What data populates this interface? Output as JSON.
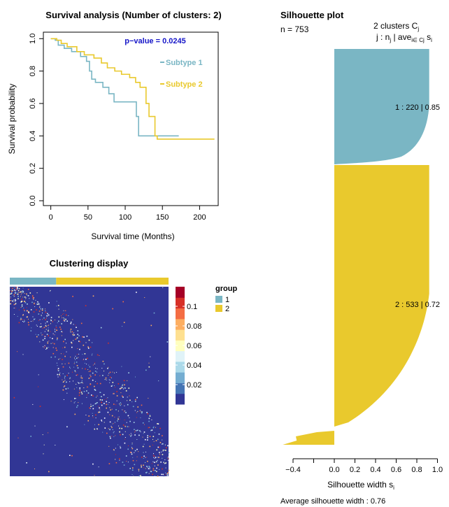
{
  "colors": {
    "subtype1": "#7ab6c4",
    "subtype2": "#e9c92d",
    "pvalue": "#1515c8",
    "heatmap_bg": "#313695",
    "axis": "#000000"
  },
  "chart_data": [
    {
      "type": "line",
      "title": "Survival analysis (Number of clusters: 2)",
      "xlabel": "Survival time (Months)",
      "ylabel": "Survival probability",
      "xlim": [
        -10,
        225
      ],
      "ylim": [
        -0.03,
        1.04
      ],
      "xticks": [
        0,
        50,
        100,
        150,
        200
      ],
      "yticks": [
        0.0,
        0.2,
        0.4,
        0.6,
        0.8,
        1.0
      ],
      "pvalue_label": "p−value = 0.0245",
      "legend_position": "right-middle",
      "series": [
        {
          "name": "Subtype 1",
          "color_key": "subtype1",
          "steps": [
            [
              0,
              1.0
            ],
            [
              6,
              0.99
            ],
            [
              10,
              0.96
            ],
            [
              18,
              0.94
            ],
            [
              28,
              0.92
            ],
            [
              40,
              0.89
            ],
            [
              48,
              0.86
            ],
            [
              52,
              0.8
            ],
            [
              55,
              0.75
            ],
            [
              60,
              0.73
            ],
            [
              70,
              0.7
            ],
            [
              78,
              0.66
            ],
            [
              85,
              0.61
            ],
            [
              95,
              0.61
            ],
            [
              105,
              0.61
            ],
            [
              115,
              0.52
            ],
            [
              118,
              0.4
            ],
            [
              140,
              0.4
            ],
            [
              172,
              0.4
            ]
          ]
        },
        {
          "name": "Subtype 2",
          "color_key": "subtype2",
          "steps": [
            [
              0,
              1.0
            ],
            [
              8,
              0.99
            ],
            [
              14,
              0.97
            ],
            [
              22,
              0.95
            ],
            [
              35,
              0.92
            ],
            [
              45,
              0.9
            ],
            [
              58,
              0.88
            ],
            [
              68,
              0.85
            ],
            [
              76,
              0.82
            ],
            [
              86,
              0.8
            ],
            [
              95,
              0.78
            ],
            [
              106,
              0.76
            ],
            [
              114,
              0.73
            ],
            [
              120,
              0.7
            ],
            [
              128,
              0.6
            ],
            [
              132,
              0.52
            ],
            [
              140,
              0.4
            ],
            [
              143,
              0.38
            ],
            [
              220,
              0.38
            ]
          ]
        }
      ]
    },
    {
      "type": "bar",
      "subtype": "silhouette",
      "title": "Silhouette plot",
      "n_label": "n = 753",
      "header_line1": "2  clusters  C",
      "header_sub1": "j",
      "header_line2": "j :  n",
      "header_sub2a": "j",
      "header_mid": " | ave",
      "header_sub2b": "i∈ Cj",
      "header_end": "  s",
      "header_sub2c": "i",
      "xlabel": "Silhouette width s",
      "xlabel_sub": "i",
      "xlim": [
        -0.5,
        1.0
      ],
      "xticks": [
        -0.4,
        -0.2,
        0.0,
        0.2,
        0.4,
        0.6,
        0.8,
        1.0
      ],
      "xtick_labels": [
        "−0.4",
        "",
        "0.0",
        "0.2",
        "0.4",
        "0.6",
        "0.8",
        "1.0"
      ],
      "average_label": "Average silhouette width :  0.76",
      "clusters": [
        {
          "id": 1,
          "n": 220,
          "avg": 0.85,
          "label": "1 :   220  |  0.85",
          "color_key": "subtype1",
          "max_width": 0.92,
          "min_width": 0.0
        },
        {
          "id": 2,
          "n": 533,
          "avg": 0.72,
          "label": "2 :   533  |  0.72",
          "color_key": "subtype2",
          "max_width": 0.92,
          "min_width": -0.5
        }
      ]
    },
    {
      "type": "heatmap",
      "title": "Clustering display",
      "legend_title": "group",
      "groups": [
        {
          "label": "1",
          "color_key": "subtype1",
          "size": 220
        },
        {
          "label": "2",
          "color_key": "subtype2",
          "size": 533
        }
      ],
      "colorbar_ticks": [
        0.02,
        0.04,
        0.06,
        0.08,
        0.1
      ],
      "colorbar_tick_labels": [
        "0.02",
        "0.04",
        "0.06",
        "0.08",
        "0.1"
      ],
      "colorbar_range": [
        0.0,
        0.12
      ],
      "colorbar_colors": [
        "#313695",
        "#4575b4",
        "#74add1",
        "#abd9e9",
        "#e0f3f8",
        "#ffffbf",
        "#fee090",
        "#fdae61",
        "#f46d43",
        "#d73027",
        "#a50026"
      ]
    }
  ]
}
